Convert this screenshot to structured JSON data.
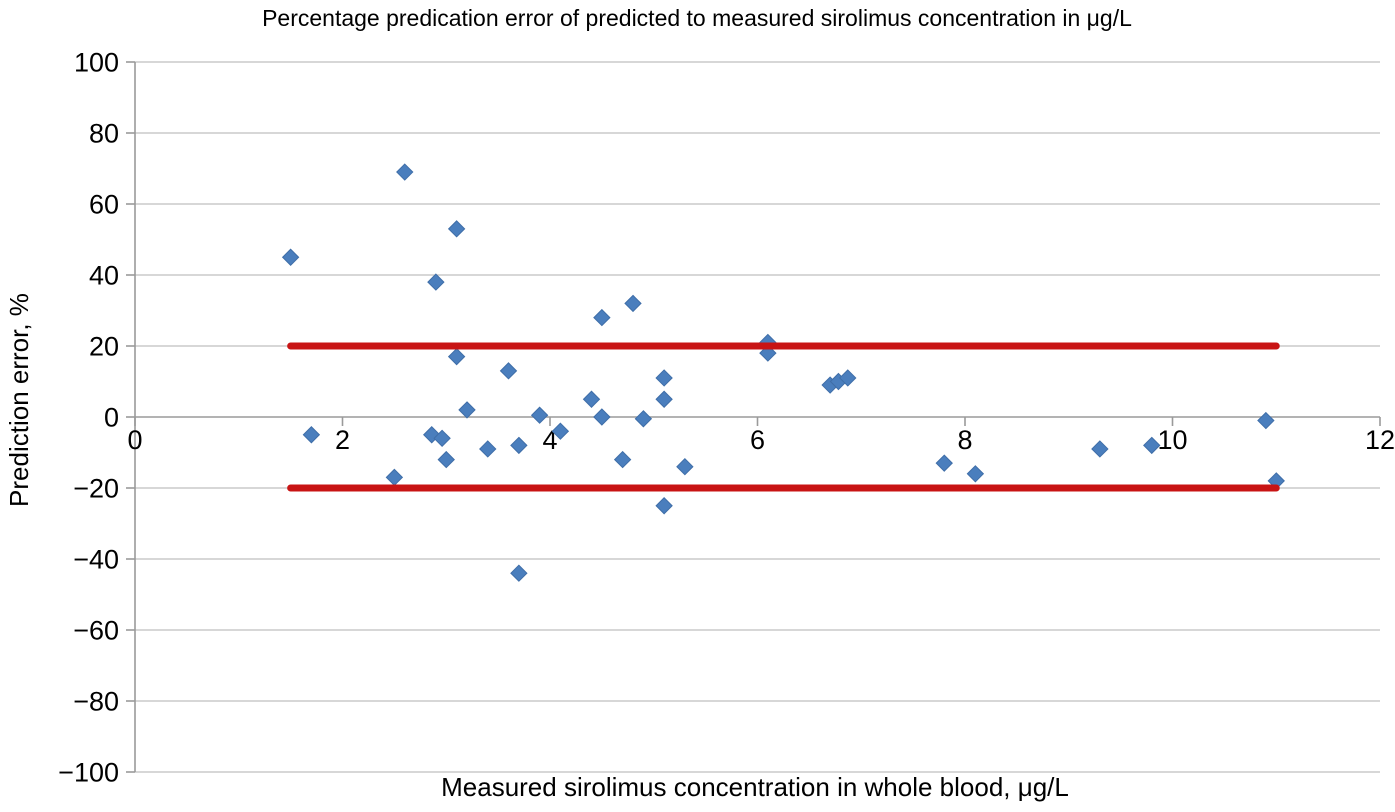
{
  "chart_data": {
    "type": "scatter",
    "title": "Percentage predication error of predicted to measured sirolimus concentration in μg/L",
    "xlabel": "Measured sirolimus concentration in whole blood, μg/L",
    "ylabel": "Prediction error, %",
    "xlim": [
      0,
      12
    ],
    "ylim": [
      -100,
      100
    ],
    "x_ticks": [
      {
        "value": 0,
        "label": "0"
      },
      {
        "value": 2,
        "label": "2"
      },
      {
        "value": 4,
        "label": "4"
      },
      {
        "value": 6,
        "label": "6"
      },
      {
        "value": 8,
        "label": "8"
      },
      {
        "value": 10,
        "label": "10"
      },
      {
        "value": 12,
        "label": "12"
      }
    ],
    "y_ticks": [
      {
        "value": 100,
        "label": "100"
      },
      {
        "value": 80,
        "label": "80"
      },
      {
        "value": 60,
        "label": "60"
      },
      {
        "value": 40,
        "label": "40"
      },
      {
        "value": 20,
        "label": "20"
      },
      {
        "value": 0,
        "label": "0"
      },
      {
        "value": -20,
        "label": "−20"
      },
      {
        "value": -40,
        "label": "−40"
      },
      {
        "value": -60,
        "label": "−60"
      },
      {
        "value": -80,
        "label": "−80"
      },
      {
        "value": -100,
        "label": "−100"
      }
    ],
    "grid": "horizontal",
    "legend": "none",
    "marker": "diamond",
    "colors": {
      "marker_fill": "#4a7ebd",
      "marker_edge": "#3f6ea8",
      "gridline": "#bfbfbf",
      "axis_line": "#9a9a9a",
      "limit_line": "#c81414",
      "text": "#000000"
    },
    "limit_lines": [
      {
        "name": "upper-20-percent",
        "y": 20,
        "x_start": 1.5,
        "x_end": 11.0
      },
      {
        "name": "lower-20-percent",
        "y": -20,
        "x_start": 1.5,
        "x_end": 11.0
      }
    ],
    "series": [
      {
        "name": "prediction-error-points",
        "points": [
          [
            1.5,
            45
          ],
          [
            1.7,
            -5
          ],
          [
            2.5,
            -17
          ],
          [
            2.6,
            69
          ],
          [
            2.9,
            38
          ],
          [
            2.86,
            -5
          ],
          [
            2.96,
            -6
          ],
          [
            3.0,
            -12
          ],
          [
            3.1,
            53
          ],
          [
            3.1,
            17
          ],
          [
            3.2,
            2
          ],
          [
            3.4,
            -9
          ],
          [
            3.6,
            13
          ],
          [
            3.7,
            -8
          ],
          [
            3.7,
            -44
          ],
          [
            3.9,
            0.5
          ],
          [
            4.1,
            -4
          ],
          [
            4.4,
            5
          ],
          [
            4.5,
            28
          ],
          [
            4.5,
            0
          ],
          [
            4.7,
            -12
          ],
          [
            4.8,
            32
          ],
          [
            4.9,
            -0.5
          ],
          [
            5.1,
            11
          ],
          [
            5.1,
            5
          ],
          [
            5.1,
            -25
          ],
          [
            5.3,
            -14
          ],
          [
            6.1,
            21
          ],
          [
            6.1,
            18
          ],
          [
            6.7,
            9
          ],
          [
            6.78,
            10
          ],
          [
            6.87,
            11
          ],
          [
            7.8,
            -13
          ],
          [
            8.1,
            -16
          ],
          [
            9.3,
            -9
          ],
          [
            9.8,
            -8
          ],
          [
            10.9,
            -1
          ],
          [
            11.0,
            -18
          ]
        ]
      }
    ]
  }
}
